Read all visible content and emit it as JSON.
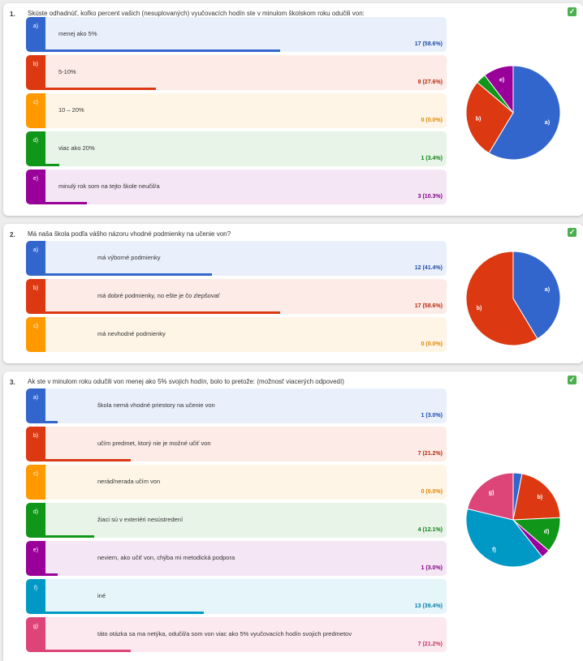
{
  "colors": {
    "a": "#3366cc",
    "b": "#dc3912",
    "c": "#ff9900",
    "d": "#109618",
    "e": "#990099",
    "f": "#0099c6",
    "g": "#dd4477"
  },
  "check_icon": "check-icon",
  "questions": [
    {
      "number": "1.",
      "text": "Skúste odhadnúť, koľko percent vašich (nesuplovaných) vyučovacích hodín ste v minulom školskom roku odučili von:",
      "options": [
        {
          "letter": "a)",
          "label": "menej ako 5%",
          "count": "17 (58.6%)",
          "fraction": 0.586
        },
        {
          "letter": "b)",
          "label": "5-10%",
          "count": "8 (27.6%)",
          "fraction": 0.276
        },
        {
          "letter": "c)",
          "label": "10 – 20%",
          "count": "0 (0.0%)",
          "fraction": 0
        },
        {
          "letter": "d)",
          "label": "viac ako 20%",
          "count": "1 (3.4%)",
          "fraction": 0.034
        },
        {
          "letter": "e)",
          "label": "minulý rok som na tejto škole neučil/a",
          "count": "3 (10.3%)",
          "fraction": 0.103
        }
      ]
    },
    {
      "number": "2.",
      "text": "Má naša škola podľa vášho názoru vhodné podmienky na učenie von?",
      "options": [
        {
          "letter": "a)",
          "label": "má výborné podmienky",
          "count": "12 (41.4%)",
          "fraction": 0.414
        },
        {
          "letter": "b)",
          "label": "má dobré podmienky, no ešte je čo zlepšovať",
          "count": "17 (58.6%)",
          "fraction": 0.586
        },
        {
          "letter": "c)",
          "label": "má nevhodné podmienky",
          "count": "0 (0.0%)",
          "fraction": 0
        }
      ]
    },
    {
      "number": "3.",
      "text": "Ak ste v minulom roku odučili von menej ako 5% svojich hodín, bolo to pretože: (možnosť viacerých odpovedí)",
      "options": [
        {
          "letter": "a)",
          "label": "škola nemá vhodné priestory na učenie von",
          "count": "1 (3.0%)",
          "fraction": 0.03
        },
        {
          "letter": "b)",
          "label": "učím predmet, ktorý nie je možné učiť von",
          "count": "7 (21.2%)",
          "fraction": 0.212
        },
        {
          "letter": "c)",
          "label": "nerád/nerada učím von",
          "count": "0 (0.0%)",
          "fraction": 0
        },
        {
          "letter": "d)",
          "label": "žiaci sú v exteriéri nesústredení",
          "count": "4 (12.1%)",
          "fraction": 0.121
        },
        {
          "letter": "e)",
          "label": "neviem, ako učiť von, chýba mi metodická podpora",
          "count": "1 (3.0%)",
          "fraction": 0.03
        },
        {
          "letter": "f)",
          "label": "iné",
          "count": "13 (39.4%)",
          "fraction": 0.394
        },
        {
          "letter": "g)",
          "label": "táto otázka sa ma netýka, odučil/a som von viac ako 5% vyučovacích hodín svojich predmetov",
          "count": "7 (21.2%)",
          "fraction": 0.212
        }
      ]
    }
  ],
  "chart_data": [
    {
      "type": "pie",
      "categories": [
        "a)",
        "b)",
        "c)",
        "d)",
        "e)"
      ],
      "values": [
        17,
        8,
        0,
        1,
        3
      ]
    },
    {
      "type": "pie",
      "categories": [
        "a)",
        "b)",
        "c)"
      ],
      "values": [
        12,
        17,
        0
      ]
    },
    {
      "type": "pie",
      "categories": [
        "a)",
        "b)",
        "c)",
        "d)",
        "e)",
        "f)",
        "g)"
      ],
      "values": [
        1,
        7,
        0,
        4,
        1,
        13,
        7
      ]
    }
  ]
}
